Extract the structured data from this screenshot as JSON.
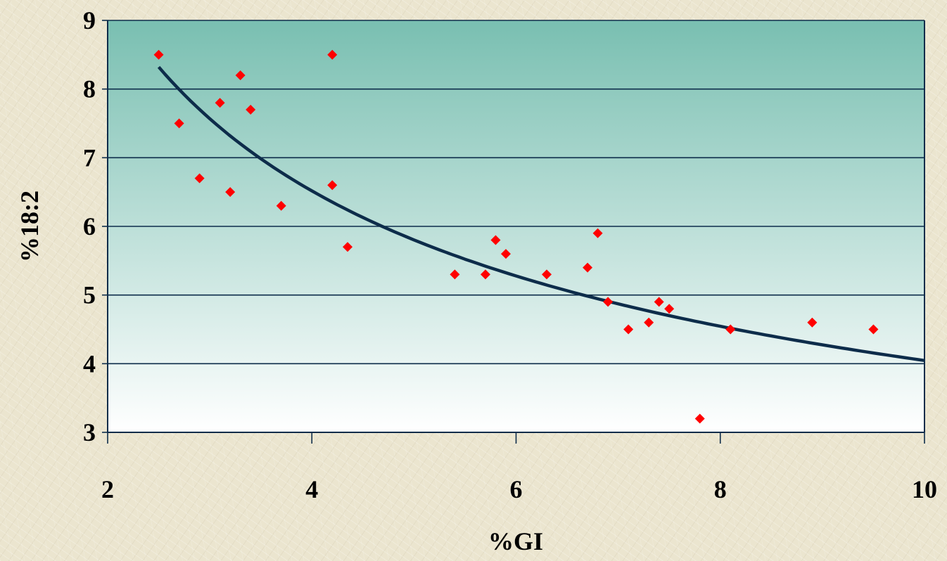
{
  "chart_data": {
    "type": "scatter",
    "xlabel": "%GI",
    "ylabel": "%18:2",
    "xlim": [
      2,
      10
    ],
    "ylim": [
      3,
      9
    ],
    "x_ticks": [
      "2",
      "4",
      "6",
      "8",
      "10"
    ],
    "y_ticks": [
      "3",
      "4",
      "5",
      "6",
      "7",
      "8",
      "9"
    ],
    "grid": "horizontal",
    "legend": "none",
    "background_gradient": {
      "top": "#79bfb1",
      "bottom": "#ffffff"
    },
    "series": [
      {
        "marker": "diamond",
        "color": "#ff0000",
        "points": [
          [
            2.5,
            8.5
          ],
          [
            2.7,
            7.5
          ],
          [
            2.9,
            6.7
          ],
          [
            3.1,
            7.8
          ],
          [
            3.2,
            6.5
          ],
          [
            3.3,
            8.2
          ],
          [
            3.4,
            7.7
          ],
          [
            3.7,
            6.3
          ],
          [
            4.2,
            8.5
          ],
          [
            4.2,
            6.6
          ],
          [
            4.35,
            5.7
          ],
          [
            5.4,
            5.3
          ],
          [
            5.7,
            5.3
          ],
          [
            5.8,
            5.8
          ],
          [
            5.9,
            5.6
          ],
          [
            6.3,
            5.3
          ],
          [
            6.7,
            5.4
          ],
          [
            6.8,
            5.9
          ],
          [
            6.9,
            4.9
          ],
          [
            7.1,
            4.5
          ],
          [
            7.3,
            4.6
          ],
          [
            7.4,
            4.9
          ],
          [
            7.5,
            4.8
          ],
          [
            7.8,
            3.2
          ],
          [
            8.1,
            4.5
          ],
          [
            8.9,
            4.6
          ],
          [
            9.5,
            4.5
          ]
        ]
      }
    ],
    "trendline": {
      "type": "power",
      "color": "#0d2c4a",
      "x_range": [
        2.5,
        10
      ],
      "coefficient": 13.4,
      "exponent": -0.52
    }
  }
}
